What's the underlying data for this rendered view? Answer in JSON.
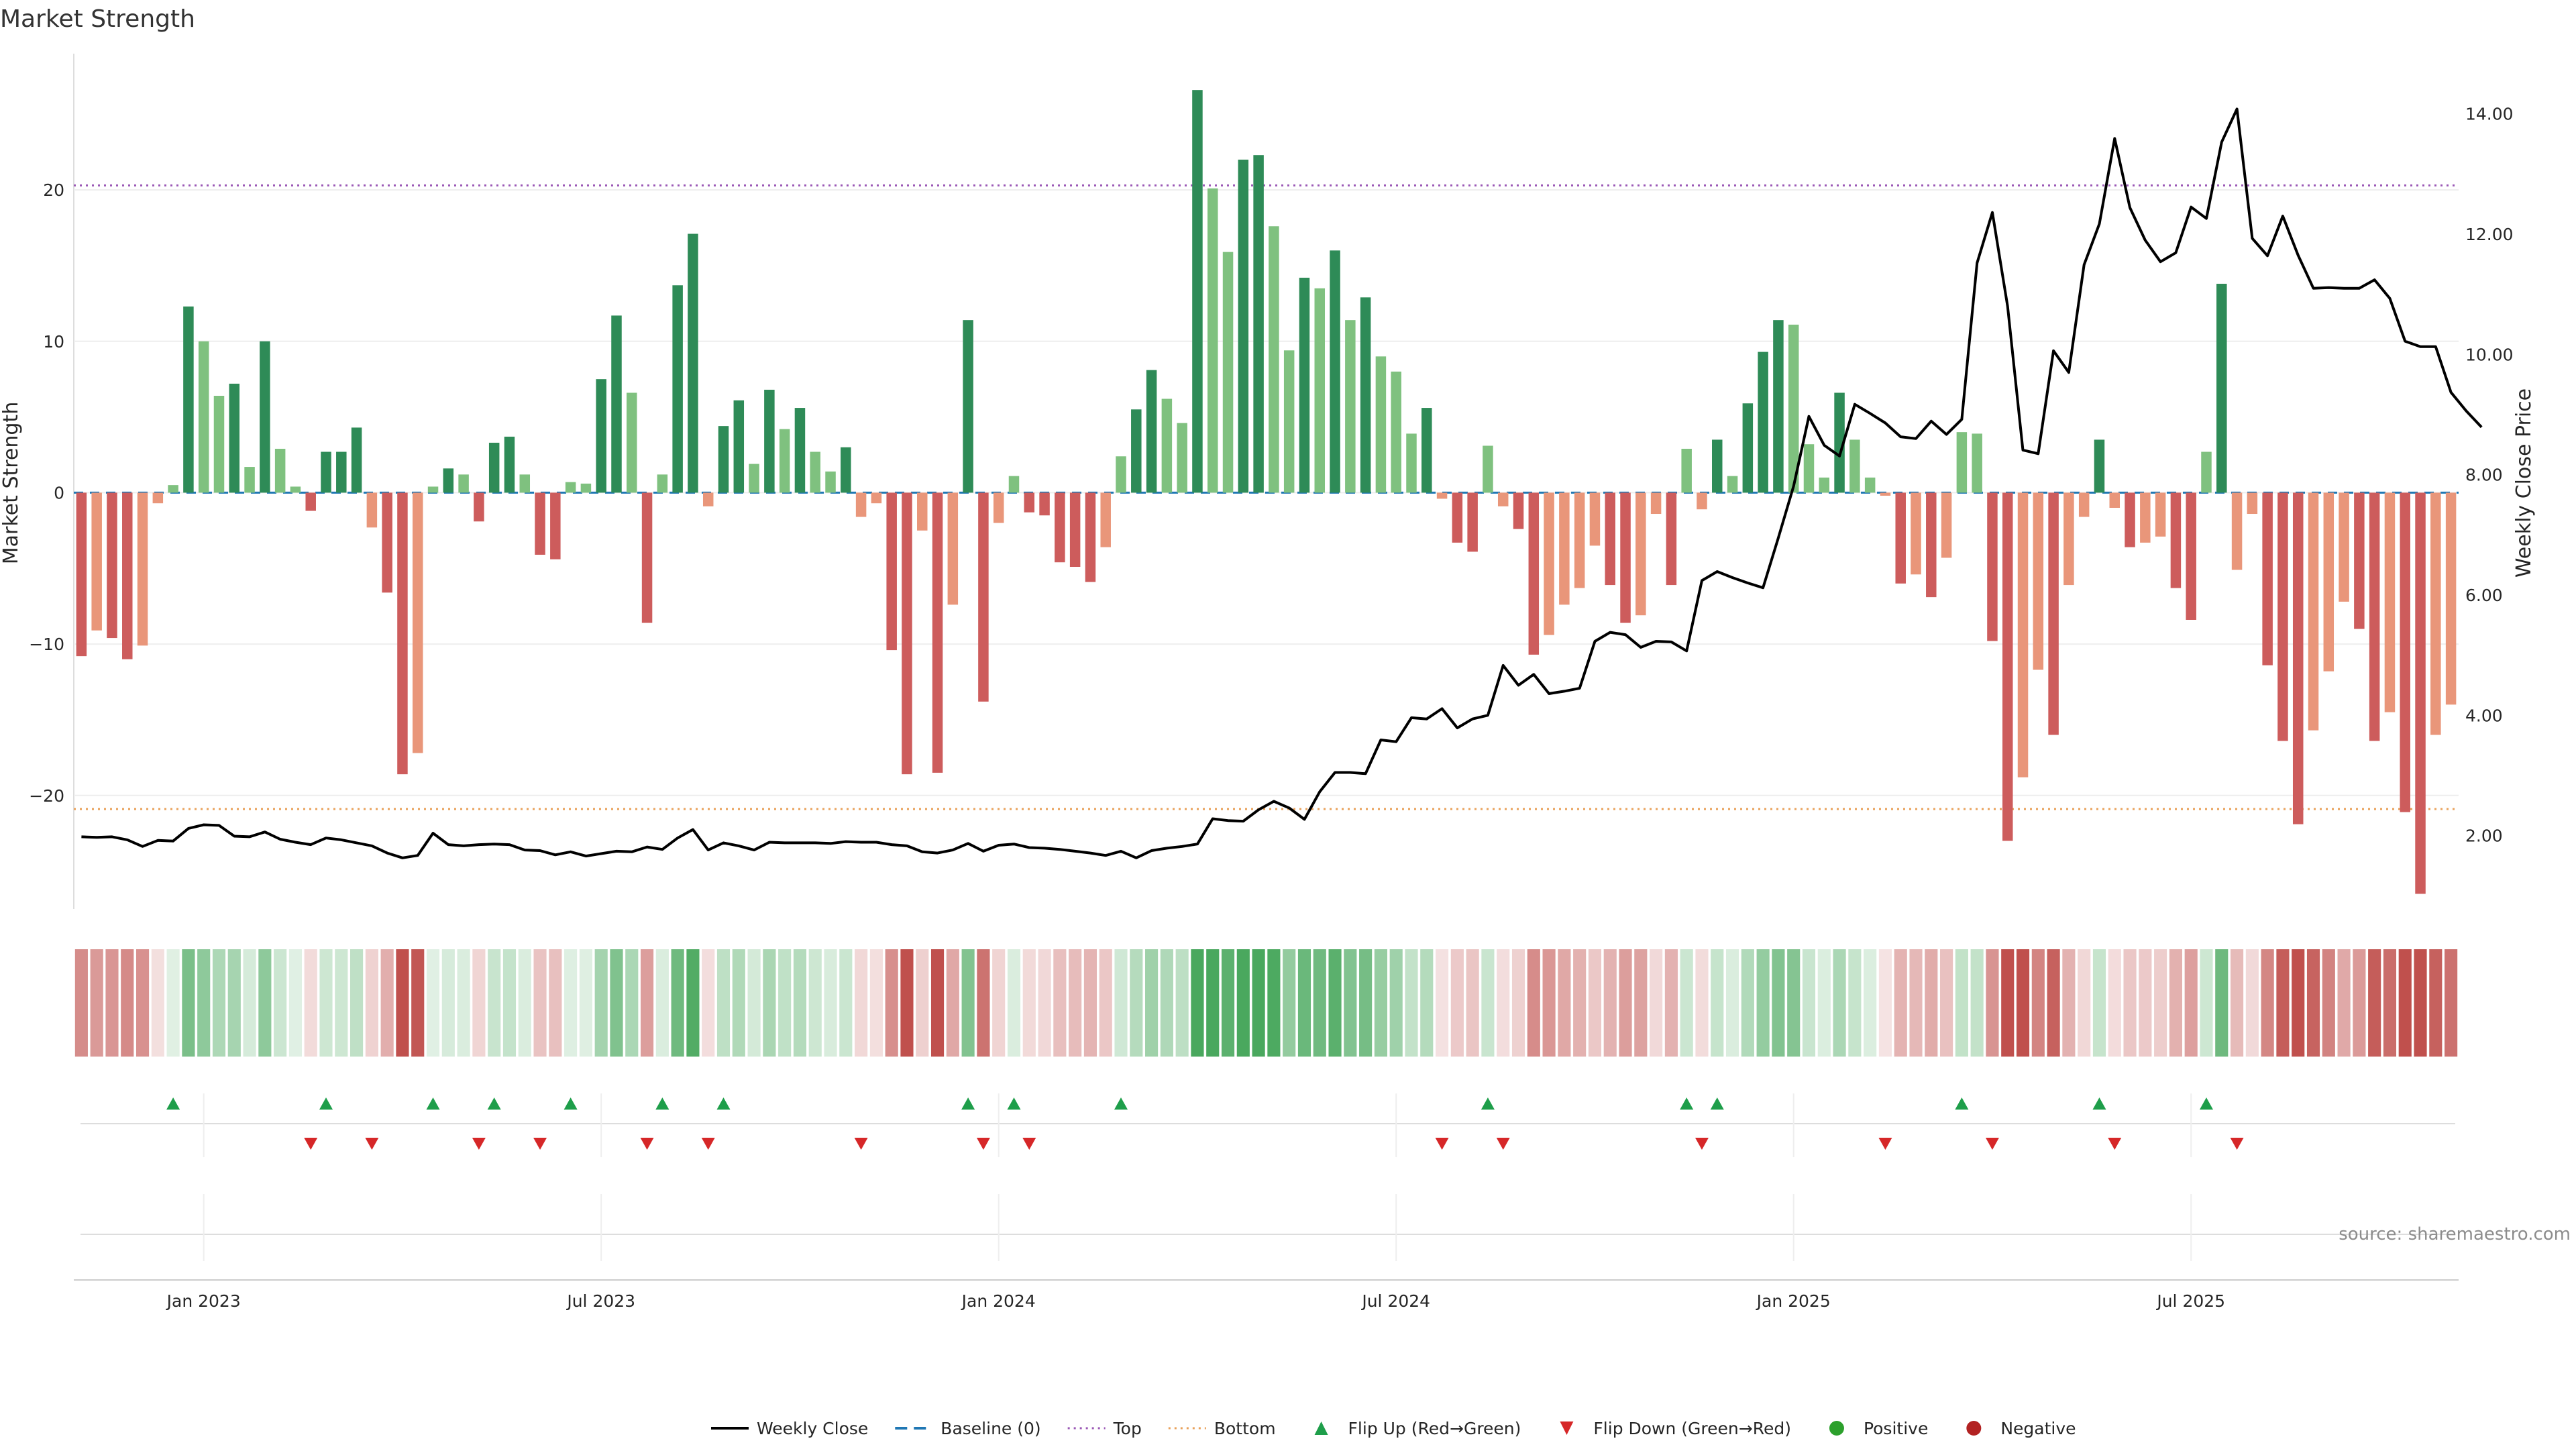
{
  "title": "Market Strength",
  "source": "source: sharemaestro.com",
  "colors": {
    "strong_pos": "#2e8b57",
    "weak_pos": "#7fc17f",
    "strong_neg": "#cd5c5c",
    "weak_neg": "#e9967a",
    "price": "#000000",
    "baseline": "#1f77b4",
    "top": "#9b59b6",
    "bottom": "#e9a15a",
    "flip_up": "#1e9e4a",
    "flip_down": "#d62728",
    "positive": "#2ca02c",
    "negative": "#b22222"
  },
  "chart_data": {
    "type": "bar",
    "title": "Market Strength",
    "ylabel_left": "Market Strength",
    "ylabel_right": "Weekly Close Price",
    "ylim_left": [
      -27.5,
      29
    ],
    "ylim_right": [
      0.78,
      15.0
    ],
    "left_ticks": [
      20,
      10,
      0,
      -10,
      -20
    ],
    "left_tick_labels": [
      "20",
      "10",
      "0",
      "−10",
      "−20"
    ],
    "right_ticks": [
      14,
      12,
      10,
      8,
      6,
      4,
      2
    ],
    "right_tick_labels": [
      "14.00",
      "12.00",
      "10.00",
      "8.00",
      "6.00",
      "4.00",
      "2.00"
    ],
    "x_ticks": [
      {
        "label": "Jan 2023",
        "index": 8
      },
      {
        "label": "Jul 2023",
        "index": 34
      },
      {
        "label": "Jan 2024",
        "index": 60
      },
      {
        "label": "Jul 2024",
        "index": 86
      },
      {
        "label": "Jan 2025",
        "index": 112
      },
      {
        "label": "Jul 2025",
        "index": 138
      }
    ],
    "top_threshold": 20.3,
    "bottom_threshold": -20.9,
    "baseline": 0,
    "grid": true,
    "legend_position": "bottom-center",
    "strength": [
      -10.8,
      -9.1,
      -9.6,
      -11.0,
      -10.1,
      -0.7,
      0.5,
      12.3,
      10.0,
      6.4,
      7.2,
      1.7,
      10.0,
      2.9,
      0.4,
      -1.2,
      2.7,
      2.7,
      4.3,
      -2.3,
      -6.6,
      -18.6,
      -17.2,
      0.4,
      1.6,
      1.2,
      -1.9,
      3.3,
      3.7,
      1.2,
      -4.1,
      -4.4,
      0.7,
      0.6,
      7.5,
      11.7,
      6.6,
      -8.6,
      1.2,
      13.7,
      17.1,
      -0.9,
      4.4,
      6.1,
      1.9,
      6.8,
      4.2,
      5.6,
      2.7,
      1.4,
      3.0,
      -1.6,
      -0.7,
      -10.4,
      -18.6,
      -2.5,
      -18.5,
      -7.4,
      11.4,
      -13.8,
      -2.0,
      1.1,
      -1.3,
      -1.5,
      -4.6,
      -4.9,
      -5.9,
      -3.6,
      2.4,
      5.5,
      8.1,
      6.2,
      4.6,
      26.6,
      20.1,
      15.9,
      22.0,
      22.3,
      17.6,
      9.4,
      14.2,
      13.5,
      16.0,
      11.4,
      12.9,
      9.0,
      8.0,
      3.9,
      5.6,
      -0.4,
      -3.3,
      -3.9,
      3.1,
      -0.9,
      -2.4,
      -10.7,
      -9.4,
      -7.4,
      -6.3,
      -3.5,
      -6.1,
      -8.6,
      -8.1,
      -1.4,
      -6.1,
      2.9,
      -1.1,
      3.5,
      1.1,
      5.9,
      9.3,
      11.4,
      11.1,
      3.2,
      1.0,
      6.6,
      3.5,
      1.0,
      -0.2,
      -6.0,
      -5.4,
      -6.9,
      -4.3,
      4.0,
      3.9,
      -9.8,
      -23.0,
      -18.8,
      -11.7,
      -16.0,
      -6.1,
      -1.6,
      3.5,
      -1.0,
      -3.6,
      -3.3,
      -2.9,
      -6.3,
      -8.4,
      2.7,
      13.8,
      -5.1,
      -1.4,
      -11.4,
      -16.4,
      -21.9,
      -15.7,
      -11.8,
      -7.2,
      -9.0,
      -16.4,
      -14.5,
      -21.1,
      -26.5,
      -16.0,
      -14.0
    ],
    "weekly_close": [
      1.98,
      1.97,
      1.98,
      1.93,
      1.82,
      1.92,
      1.91,
      2.12,
      2.18,
      2.17,
      1.99,
      1.98,
      2.06,
      1.94,
      1.89,
      1.85,
      1.96,
      1.93,
      1.88,
      1.83,
      1.71,
      1.63,
      1.67,
      2.04,
      1.85,
      1.83,
      1.85,
      1.86,
      1.85,
      1.76,
      1.75,
      1.68,
      1.73,
      1.66,
      1.7,
      1.74,
      1.73,
      1.81,
      1.77,
      1.96,
      2.1,
      1.76,
      1.88,
      1.83,
      1.76,
      1.89,
      1.88,
      1.88,
      1.88,
      1.87,
      1.9,
      1.89,
      1.89,
      1.85,
      1.83,
      1.73,
      1.71,
      1.76,
      1.87,
      1.74,
      1.84,
      1.86,
      1.8,
      1.79,
      1.77,
      1.74,
      1.71,
      1.67,
      1.74,
      1.63,
      1.75,
      1.79,
      1.82,
      1.86,
      2.28,
      2.25,
      2.24,
      2.43,
      2.57,
      2.46,
      2.27,
      2.73,
      3.05,
      3.05,
      3.03,
      3.59,
      3.56,
      3.96,
      3.94,
      4.11,
      3.79,
      3.94,
      4.0,
      4.83,
      4.5,
      4.68,
      4.36,
      4.4,
      4.45,
      5.23,
      5.38,
      5.34,
      5.13,
      5.23,
      5.22,
      5.07,
      6.24,
      6.39,
      6.29,
      6.2,
      6.12,
      6.95,
      7.81,
      8.97,
      8.49,
      8.31,
      9.17,
      9.02,
      8.86,
      8.63,
      8.6,
      8.89,
      8.67,
      8.92,
      11.52,
      12.36,
      10.8,
      8.41,
      8.35,
      10.06,
      9.7,
      11.49,
      12.17,
      13.59,
      12.44,
      11.9,
      11.54,
      11.69,
      12.45,
      12.26,
      13.53,
      14.08,
      11.93,
      11.64,
      12.3,
      11.65,
      11.1,
      11.11,
      11.1,
      11.1,
      11.24,
      10.93,
      10.22,
      10.13,
      10.13,
      9.37,
      9.06,
      8.79
    ]
  },
  "legend": [
    {
      "label": "Weekly Close",
      "type": "line",
      "color": "#000000"
    },
    {
      "label": "Baseline (0)",
      "type": "dash",
      "color": "#1f77b4"
    },
    {
      "label": "Top",
      "type": "dot",
      "color": "#9b59b6"
    },
    {
      "label": "Bottom",
      "type": "dot",
      "color": "#e9a15a"
    },
    {
      "label": "Flip Up (Red→Green)",
      "type": "tri-up",
      "color": "#1e9e4a"
    },
    {
      "label": "Flip Down (Green→Red)",
      "type": "tri-down",
      "color": "#d62728"
    },
    {
      "label": "Positive",
      "type": "circle",
      "color": "#2ca02c"
    },
    {
      "label": "Negative",
      "type": "circle",
      "color": "#b22222"
    }
  ]
}
